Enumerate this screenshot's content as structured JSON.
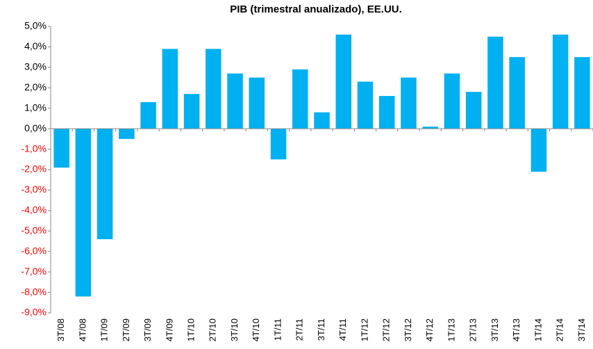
{
  "chart_data": {
    "type": "bar",
    "title": "PIB (trimestral anualizado), EE.UU.",
    "categories": [
      "3T/08",
      "4T/08",
      "1T/09",
      "2T/09",
      "3T/09",
      "4T/09",
      "1T/10",
      "2T/10",
      "3T/10",
      "4T/10",
      "1T/11",
      "2T/11",
      "3T/11",
      "4T/11",
      "1T/12",
      "2T/12",
      "3T/12",
      "4T/12",
      "1T/13",
      "2T/13",
      "3T/13",
      "4T/13",
      "1T/14",
      "2T/14",
      "3T/14"
    ],
    "values": [
      -1.9,
      -8.2,
      -5.4,
      -0.5,
      1.3,
      3.9,
      1.7,
      3.9,
      2.7,
      2.5,
      -1.5,
      2.9,
      0.8,
      4.6,
      2.3,
      1.6,
      2.5,
      0.1,
      2.7,
      1.8,
      4.5,
      3.5,
      -2.1,
      4.6,
      3.5
    ],
    "color": "#00b0f0",
    "negative_tick_label_color": "#ff0000",
    "ylim": [
      -9,
      5
    ],
    "yticks": [
      {
        "value": 5,
        "label": "5,0%"
      },
      {
        "value": 4,
        "label": "4,0%"
      },
      {
        "value": 3,
        "label": "3,0%"
      },
      {
        "value": 2,
        "label": "2,0%"
      },
      {
        "value": 1,
        "label": "1,0%"
      },
      {
        "value": 0,
        "label": "0,0%"
      },
      {
        "value": -1,
        "label": "-1,0%"
      },
      {
        "value": -2,
        "label": "-2,0%"
      },
      {
        "value": -3,
        "label": "-3,0%"
      },
      {
        "value": -4,
        "label": "-4,0%"
      },
      {
        "value": -5,
        "label": "-5,0%"
      },
      {
        "value": -6,
        "label": "-6,0%"
      },
      {
        "value": -7,
        "label": "-7,0%"
      },
      {
        "value": -8,
        "label": "-8,0%"
      },
      {
        "value": -9,
        "label": "-9,0%"
      }
    ],
    "grid": false
  }
}
